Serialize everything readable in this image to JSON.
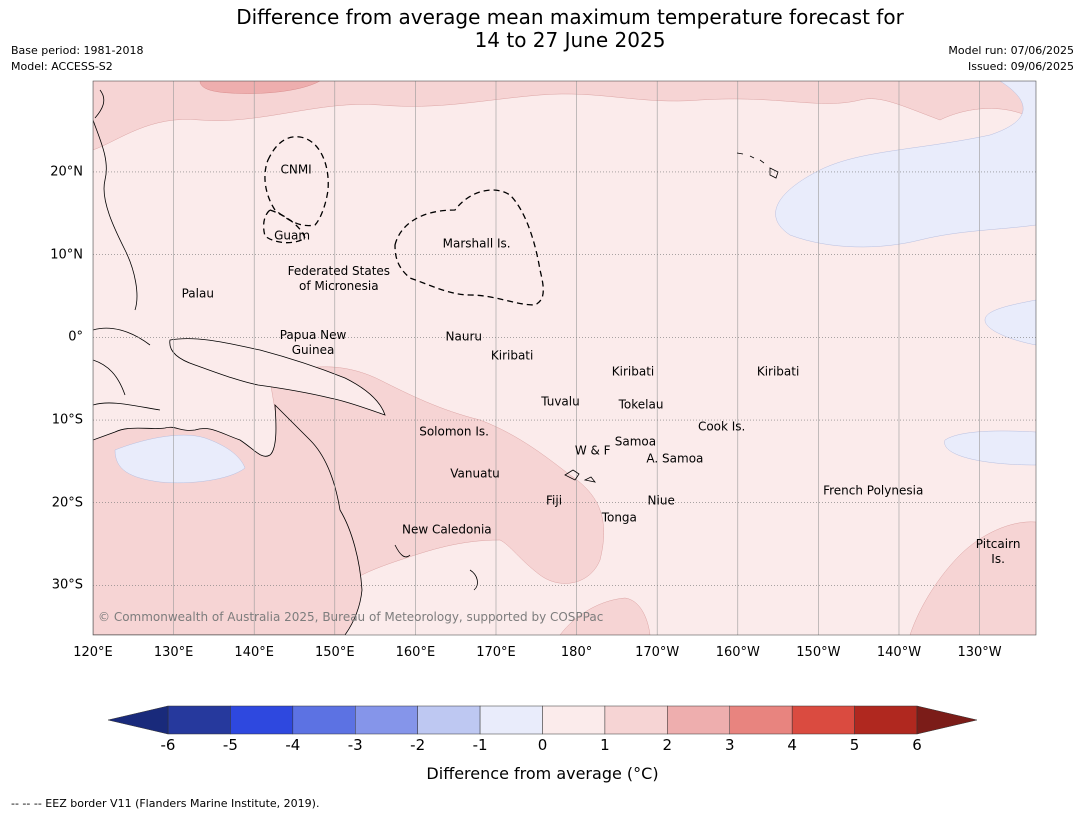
{
  "title": {
    "line1": "Difference from average mean maximum temperature forecast for",
    "line2": "14 to 27 June 2025"
  },
  "meta": {
    "base_period": "Base period: 1981-2018",
    "model": "Model: ACCESS-S2",
    "model_run": "Model run: 07/06/2025",
    "issued": "Issued: 09/06/2025"
  },
  "map_extent": {
    "lon_min": 120,
    "lon_max": 237,
    "lat_min": -36,
    "lat_max": 31
  },
  "lon_ticks": [
    {
      "lon": 120,
      "label": "120°E"
    },
    {
      "lon": 130,
      "label": "130°E"
    },
    {
      "lon": 140,
      "label": "140°E"
    },
    {
      "lon": 150,
      "label": "150°E"
    },
    {
      "lon": 160,
      "label": "160°E"
    },
    {
      "lon": 170,
      "label": "170°E"
    },
    {
      "lon": 180,
      "label": "180°"
    },
    {
      "lon": 190,
      "label": "170°W"
    },
    {
      "lon": 200,
      "label": "160°W"
    },
    {
      "lon": 210,
      "label": "150°W"
    },
    {
      "lon": 220,
      "label": "140°W"
    },
    {
      "lon": 230,
      "label": "130°W"
    }
  ],
  "lat_ticks": [
    {
      "lat": 20,
      "label": "20°N"
    },
    {
      "lat": 10,
      "label": "10°N"
    },
    {
      "lat": 0,
      "label": "0°"
    },
    {
      "lat": -10,
      "label": "10°S"
    },
    {
      "lat": -20,
      "label": "20°S"
    },
    {
      "lat": -30,
      "label": "30°S"
    }
  ],
  "regions": [
    {
      "name": "CNMI",
      "lon": 145.2,
      "lat": 20.2
    },
    {
      "name": "Guam",
      "lon": 144.7,
      "lat": 12.2
    },
    {
      "name": "Marshall Is.",
      "lon": 167.6,
      "lat": 11.3
    },
    {
      "name": "Federated States\nof Micronesia",
      "lon": 150.5,
      "lat": 7.0
    },
    {
      "name": "Palau",
      "lon": 133.0,
      "lat": 5.2
    },
    {
      "name": "Papua New\nGuinea",
      "lon": 147.3,
      "lat": -0.7
    },
    {
      "name": "Nauru",
      "lon": 166.0,
      "lat": 0.0
    },
    {
      "name": "Kiribati",
      "lon": 172.0,
      "lat": -2.2
    },
    {
      "name": "Kiribati",
      "lon": 187.0,
      "lat": -4.2
    },
    {
      "name": "Kiribati",
      "lon": 205.0,
      "lat": -4.2
    },
    {
      "name": "Tuvalu",
      "lon": 178.0,
      "lat": -7.8
    },
    {
      "name": "Tokelau",
      "lon": 188.0,
      "lat": -8.2
    },
    {
      "name": "Solomon Is.",
      "lon": 164.8,
      "lat": -11.5
    },
    {
      "name": "Cook Is.",
      "lon": 198.0,
      "lat": -10.9
    },
    {
      "name": "Samoa",
      "lon": 187.3,
      "lat": -12.7
    },
    {
      "name": "W & F",
      "lon": 182.0,
      "lat": -13.7
    },
    {
      "name": "A. Samoa",
      "lon": 192.2,
      "lat": -14.7
    },
    {
      "name": "Vanuatu",
      "lon": 167.4,
      "lat": -16.5
    },
    {
      "name": "French Polynesia",
      "lon": 216.8,
      "lat": -18.6
    },
    {
      "name": "Fiji",
      "lon": 177.2,
      "lat": -19.8
    },
    {
      "name": "Niue",
      "lon": 190.5,
      "lat": -19.8
    },
    {
      "name": "Tonga",
      "lon": 185.3,
      "lat": -21.9
    },
    {
      "name": "New Caledonia",
      "lon": 163.9,
      "lat": -23.3
    },
    {
      "name": "Pitcairn\nIs.",
      "lon": 232.3,
      "lat": -26.0
    }
  ],
  "copyright": "© Commonwealth of Australia 2025, Bureau of Meteorology, supported by COSPPac",
  "colorbar": {
    "title": "Difference from average (°C)",
    "levels": [
      "-6",
      "-5",
      "-4",
      "-3",
      "-2",
      "-1",
      "0",
      "1",
      "2",
      "3",
      "4",
      "5",
      "6"
    ],
    "colors": [
      "#26399d",
      "#2e48df",
      "#5c72e3",
      "#8595ea",
      "#bec8f2",
      "#e9ecfb",
      "#fbebeb",
      "#f6d4d4",
      "#eeaeae",
      "#e8847f",
      "#da4b40",
      "#b0281f"
    ],
    "low_extend": "#192a7b",
    "high_extend": "#7b1c18"
  },
  "palette": {
    "near_zero_warm": "#fbebeb",
    "warm_1_2": "#f6d4d4",
    "warm_2_3": "#eeaeae",
    "cool_0_1": "#e9ecfb",
    "land_aus": "#f6d4d4"
  },
  "footnote": "--  --  -- EEZ border V11 (Flanders Marine Institute, 2019)."
}
